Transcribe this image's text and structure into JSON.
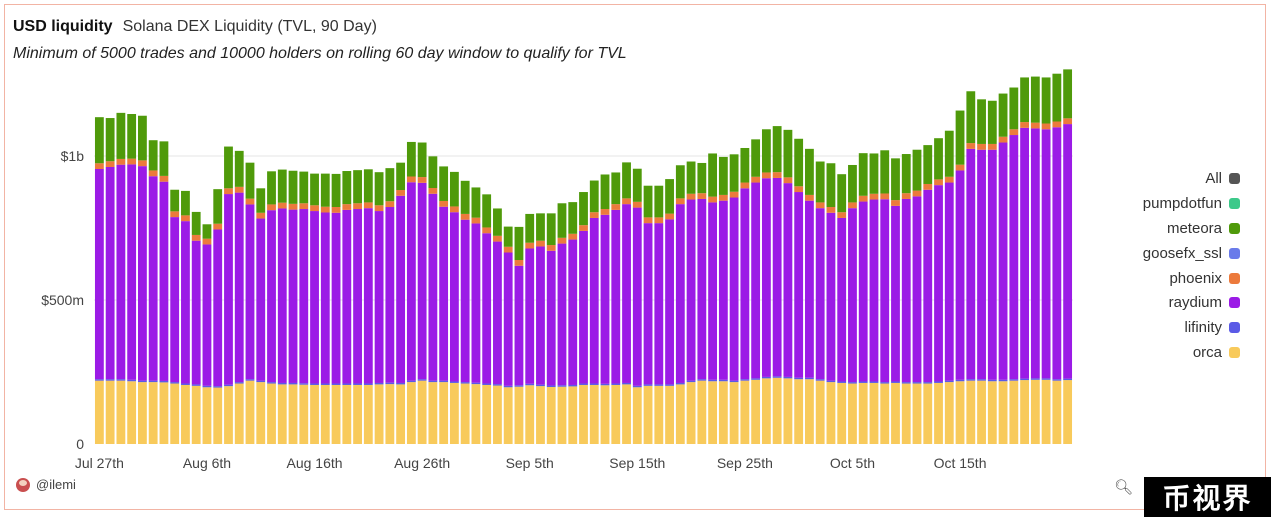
{
  "header": {
    "title": "USD liquidity",
    "chart_name": "Solana DEX Liquidity (TVL, 90 Day)",
    "subtitle": "Minimum of 5000 trades and 10000 holders on rolling 60 day window to qualify for TVL"
  },
  "footer": {
    "author": "@ilemi",
    "watermark": "币视界"
  },
  "chart_data": {
    "type": "bar",
    "stacked": true,
    "y_ticks": [
      {
        "value": 0,
        "label": "0"
      },
      {
        "value": 500,
        "label": "$500m"
      },
      {
        "value": 1000,
        "label": "$1b"
      }
    ],
    "x_ticks": [
      {
        "index": 0,
        "label": "Jul 27th"
      },
      {
        "index": 10,
        "label": "Aug 6th"
      },
      {
        "index": 20,
        "label": "Aug 16th"
      },
      {
        "index": 30,
        "label": "Aug 26th"
      },
      {
        "index": 40,
        "label": "Sep 5th"
      },
      {
        "index": 50,
        "label": "Sep 15th"
      },
      {
        "index": 60,
        "label": "Sep 25th"
      },
      {
        "index": 70,
        "label": "Oct 5th"
      },
      {
        "index": 80,
        "label": "Oct 15th"
      }
    ],
    "ylim": [
      0,
      1278
    ],
    "grid": true,
    "legend_position": "right",
    "legend": [
      {
        "name": "All",
        "color": "#555555"
      },
      {
        "name": "pumpdotfun",
        "color": "#3cc98a"
      },
      {
        "name": "meteora",
        "color": "#4f9a0a"
      },
      {
        "name": "goosefx_ssl",
        "color": "#6a7bea"
      },
      {
        "name": "phoenix",
        "color": "#ec7a3c"
      },
      {
        "name": "raydium",
        "color": "#9b1be6"
      },
      {
        "name": "lifinity",
        "color": "#5a5ae6"
      },
      {
        "name": "orca",
        "color": "#f8ca5b"
      }
    ],
    "series": [
      {
        "name": "orca",
        "color": "#f8ca5b",
        "values": [
          220,
          220,
          220,
          218,
          215,
          215,
          214,
          210,
          205,
          202,
          197,
          196,
          201,
          210,
          220,
          215,
          210,
          207,
          207,
          206,
          205,
          205,
          205,
          205,
          205,
          205,
          207,
          208,
          207,
          215,
          220,
          215,
          215,
          212,
          210,
          208,
          205,
          203,
          197,
          199,
          204,
          201,
          198,
          199,
          200,
          205,
          205,
          204,
          205,
          207,
          197,
          202,
          202,
          202,
          207,
          215,
          220,
          218,
          218,
          215,
          220,
          223,
          228,
          230,
          228,
          225,
          225,
          220,
          215,
          212,
          210,
          212,
          212,
          210,
          212,
          210,
          210,
          210,
          212,
          215,
          218,
          220,
          220,
          218,
          218,
          220,
          222,
          223,
          223,
          220,
          222
        ]
      },
      {
        "name": "lifinity",
        "color": "#5a5ae6",
        "values": [
          5,
          5,
          5,
          5,
          5,
          5,
          5,
          5,
          5,
          5,
          5,
          5,
          5,
          5,
          5,
          5,
          5,
          5,
          5,
          5,
          5,
          5,
          5,
          5,
          5,
          5,
          5,
          5,
          5,
          5,
          5,
          5,
          5,
          5,
          5,
          5,
          5,
          5,
          5,
          5,
          5,
          5,
          5,
          5,
          5,
          5,
          5,
          5,
          5,
          5,
          5,
          5,
          5,
          5,
          5,
          5,
          5,
          5,
          5,
          5,
          5,
          5,
          5,
          5,
          5,
          5,
          5,
          5,
          5,
          5,
          5,
          5,
          5,
          5,
          5,
          5,
          5,
          5,
          5,
          5,
          5,
          5,
          5,
          5,
          5,
          5,
          5,
          5,
          5,
          5,
          5
        ]
      },
      {
        "name": "raydium",
        "color": "#9b1be6",
        "values": [
          730,
          737,
          745,
          748,
          745,
          710,
          692,
          573,
          564,
          499,
          491,
          544,
          662,
          658,
          607,
          563,
          597,
          606,
          602,
          605,
          599,
          594,
          593,
          603,
          606,
          609,
          597,
          610,
          650,
          689,
          682,
          649,
          604,
          588,
          564,
          553,
          522,
          495,
          463,
          415,
          470,
          480,
          468,
          492,
          505,
          530,
          575,
          587,
          603,
          621,
          619,
          560,
          560,
          573,
          621,
          629,
          626,
          616,
          622,
          636,
          663,
          680,
          690,
          689,
          673,
          645,
          615,
          594,
          583,
          568,
          604,
          625,
          632,
          635,
          610,
          636,
          645,
          668,
          682,
          688,
          727,
          800,
          797,
          799,
          824,
          848,
          871,
          868,
          865,
          875,
          884
        ]
      },
      {
        "name": "phoenix",
        "color": "#ec7a3c",
        "values": [
          20,
          20,
          20,
          20,
          20,
          20,
          20,
          20,
          20,
          20,
          20,
          20,
          20,
          20,
          20,
          20,
          20,
          20,
          20,
          20,
          20,
          20,
          20,
          20,
          20,
          20,
          20,
          20,
          20,
          20,
          20,
          20,
          20,
          20,
          20,
          20,
          20,
          20,
          20,
          20,
          20,
          20,
          20,
          20,
          20,
          20,
          20,
          20,
          20,
          20,
          20,
          20,
          20,
          20,
          20,
          20,
          20,
          20,
          20,
          20,
          20,
          20,
          20,
          20,
          20,
          20,
          20,
          20,
          20,
          20,
          20,
          20,
          20,
          20,
          20,
          20,
          20,
          20,
          20,
          20,
          20,
          20,
          20,
          20,
          20,
          20,
          20,
          20,
          20,
          20,
          20
        ]
      },
      {
        "name": "meteora",
        "color": "#4f9a0a",
        "values": [
          160,
          150,
          160,
          155,
          155,
          105,
          120,
          75,
          85,
          80,
          50,
          120,
          145,
          125,
          125,
          85,
          115,
          115,
          115,
          110,
          110,
          115,
          115,
          115,
          115,
          115,
          115,
          115,
          95,
          120,
          120,
          110,
          120,
          120,
          115,
          105,
          115,
          95,
          70,
          115,
          100,
          95,
          110,
          120,
          110,
          115,
          110,
          120,
          110,
          125,
          115,
          110,
          110,
          120,
          115,
          112,
          105,
          150,
          132,
          130,
          120,
          130,
          150,
          160,
          165,
          165,
          160,
          142,
          152,
          132,
          130,
          148,
          140,
          150,
          145,
          136,
          142,
          135,
          143,
          160,
          188,
          180,
          155,
          150,
          150,
          145,
          155,
          160,
          160,
          166,
          170
        ]
      },
      {
        "name": "goosefx_ssl",
        "color": "#6a7bea",
        "values": [
          0,
          0,
          0,
          0,
          0,
          0,
          0,
          0,
          0,
          0,
          0,
          0,
          0,
          0,
          0,
          0,
          0,
          0,
          0,
          0,
          0,
          0,
          0,
          0,
          0,
          0,
          0,
          0,
          0,
          0,
          0,
          0,
          0,
          0,
          0,
          0,
          0,
          0,
          0,
          0,
          0,
          0,
          0,
          0,
          0,
          0,
          0,
          0,
          0,
          0,
          0,
          0,
          0,
          0,
          0,
          0,
          0,
          0,
          0,
          0,
          0,
          0,
          0,
          0,
          0,
          0,
          0,
          0,
          0,
          0,
          0,
          0,
          0,
          0,
          0,
          0,
          0,
          0,
          0,
          0,
          0,
          0,
          0,
          0,
          0,
          0,
          0,
          0,
          0,
          0,
          0
        ]
      },
      {
        "name": "pumpdotfun",
        "color": "#3cc98a",
        "values": [
          0,
          0,
          0,
          0,
          0,
          0,
          0,
          0,
          0,
          0,
          0,
          0,
          0,
          0,
          0,
          0,
          0,
          0,
          0,
          0,
          0,
          0,
          0,
          0,
          0,
          0,
          0,
          0,
          0,
          0,
          0,
          0,
          0,
          0,
          0,
          0,
          0,
          0,
          0,
          0,
          0,
          0,
          0,
          0,
          0,
          0,
          0,
          0,
          0,
          0,
          0,
          0,
          0,
          0,
          0,
          0,
          0,
          0,
          0,
          0,
          0,
          0,
          0,
          0,
          0,
          0,
          0,
          0,
          0,
          0,
          0,
          0,
          0,
          0,
          0,
          0,
          0,
          0,
          0,
          0,
          0,
          0,
          0,
          0,
          0,
          0,
          0,
          0,
          0,
          0,
          0
        ]
      }
    ]
  }
}
